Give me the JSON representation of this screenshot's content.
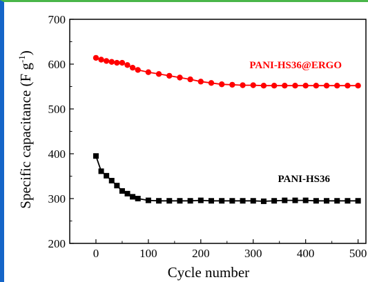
{
  "chart_data": {
    "type": "line",
    "xlabel": "Cycle number",
    "ylabel": "Specific capacitance (F g-1)",
    "ylabel_main": "Specific capacitance (F g",
    "ylabel_sup": "-1",
    "ylabel_close": ")",
    "xlim": [
      -50,
      515
    ],
    "ylim": [
      200,
      700
    ],
    "xticks": [
      0,
      100,
      200,
      300,
      400,
      500
    ],
    "yticks": [
      200,
      300,
      400,
      500,
      600,
      700
    ],
    "grid": false,
    "series": [
      {
        "name": "PANI-HS36@ERGO",
        "color": "#ff0000",
        "marker": "circle",
        "x": [
          0,
          10,
          20,
          30,
          40,
          50,
          60,
          70,
          80,
          100,
          120,
          140,
          160,
          180,
          200,
          220,
          240,
          260,
          280,
          300,
          320,
          340,
          360,
          380,
          400,
          420,
          440,
          460,
          480,
          500
        ],
        "y": [
          614,
          610,
          607,
          605,
          603,
          603,
          598,
          592,
          587,
          582,
          578,
          574,
          570,
          566,
          561,
          558,
          555,
          554,
          553,
          553,
          552,
          552,
          552,
          552,
          552,
          552,
          552,
          552,
          552,
          552
        ]
      },
      {
        "name": "PANI-HS36",
        "color": "#000000",
        "marker": "square",
        "x": [
          0,
          10,
          20,
          30,
          40,
          50,
          60,
          70,
          80,
          100,
          120,
          140,
          160,
          180,
          200,
          220,
          240,
          260,
          280,
          300,
          320,
          340,
          360,
          380,
          400,
          420,
          440,
          460,
          480,
          500
        ],
        "y": [
          395,
          361,
          351,
          340,
          329,
          317,
          311,
          304,
          300,
          296,
          295,
          295,
          295,
          295,
          296,
          295,
          295,
          295,
          295,
          295,
          294,
          295,
          296,
          296,
          296,
          295,
          295,
          295,
          295,
          295
        ]
      }
    ]
  }
}
